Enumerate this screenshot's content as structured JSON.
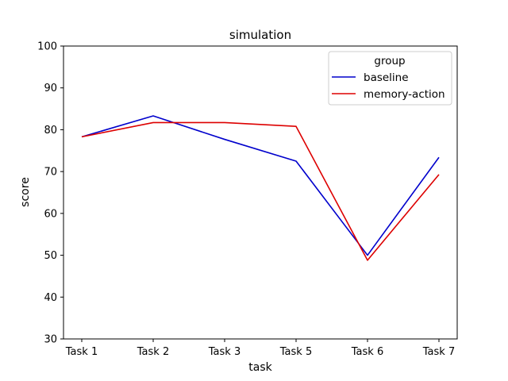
{
  "chart_data": {
    "type": "line",
    "title": "simulation",
    "xlabel": "task",
    "ylabel": "score",
    "categories": [
      "Task 1",
      "Task 2",
      "Task 3",
      "Task 5",
      "Task 6",
      "Task 7"
    ],
    "ylim": [
      30,
      100
    ],
    "yticks": [
      30,
      40,
      50,
      60,
      70,
      80,
      90,
      100
    ],
    "grid": false,
    "legend": {
      "title": "group",
      "placement": "top-right"
    },
    "series": [
      {
        "name": "baseline",
        "color": "#0000cc",
        "values": [
          78.3,
          83.3,
          77.7,
          72.5,
          50.0,
          73.4
        ]
      },
      {
        "name": "memory-action",
        "color": "#dd0000",
        "values": [
          78.3,
          81.7,
          81.7,
          80.8,
          48.8,
          69.3
        ]
      }
    ]
  }
}
